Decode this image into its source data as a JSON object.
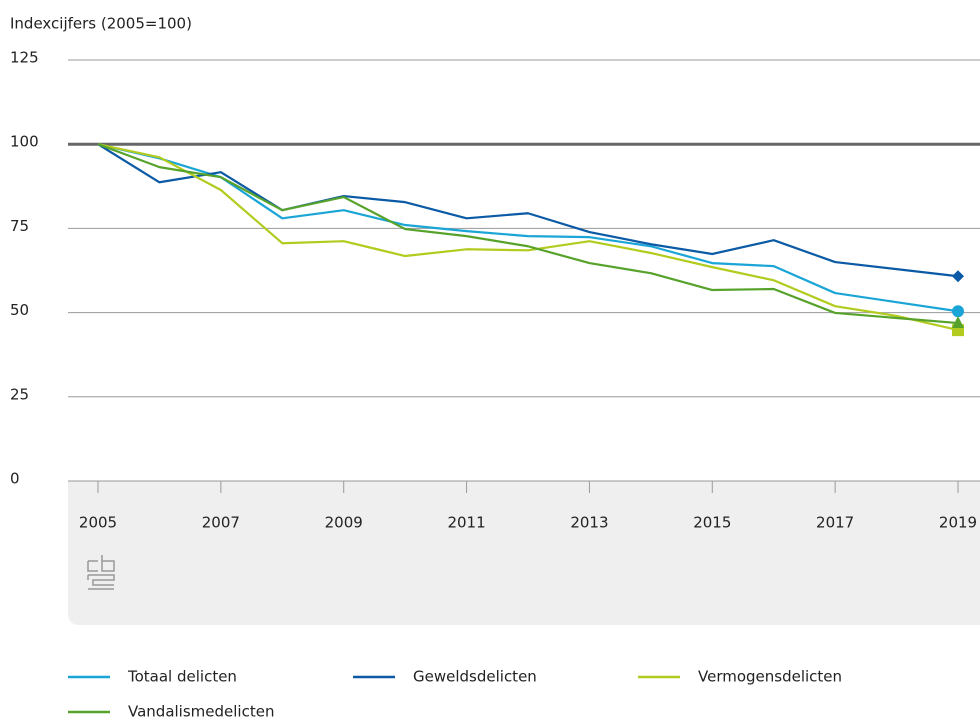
{
  "chart_data": {
    "type": "line",
    "y_label": "Indexcijfers (2005=100)",
    "x": [
      2005,
      2006,
      2007,
      2008,
      2009,
      2010,
      2011,
      2012,
      2013,
      2014,
      2015,
      2016,
      2017,
      2018,
      2019
    ],
    "xlim": [
      2005,
      2019
    ],
    "xticks": [
      2005,
      2007,
      2009,
      2011,
      2013,
      2015,
      2017,
      2019
    ],
    "ylim": [
      0,
      125
    ],
    "yticks": [
      0,
      25,
      50,
      75,
      100,
      125
    ],
    "baseline": 100,
    "grid": true,
    "legend": "bottom",
    "series": [
      {
        "name": "Totaal delicten",
        "color": "#1aa5d6",
        "marker": "circle",
        "values": [
          100,
          95.8,
          90.2,
          78,
          80.4,
          76,
          74.2,
          72.7,
          72.4,
          69.7,
          64.7,
          63.8,
          55.8,
          53.1,
          50.4
        ]
      },
      {
        "name": "Geweldsdelicten",
        "color": "#0a5aa5",
        "marker": "diamond",
        "values": [
          100,
          88.7,
          91.7,
          80.4,
          84.6,
          82.8,
          78,
          79.5,
          73.9,
          70.3,
          67.4,
          71.5,
          65,
          62.9,
          60.8
        ]
      },
      {
        "name": "Vermogensdelicten",
        "color": "#b2cb1e",
        "marker": "square",
        "values": [
          100,
          96.1,
          86.4,
          70.6,
          71.2,
          66.8,
          68.8,
          68.5,
          71.2,
          67.7,
          63.5,
          59.6,
          51.9,
          49,
          44.8
        ]
      },
      {
        "name": "Vandalismedelicten",
        "color": "#56a22a",
        "marker": "triangle",
        "values": [
          100,
          93.2,
          90.2,
          80.4,
          84.3,
          74.8,
          72.7,
          69.7,
          64.7,
          61.7,
          56.7,
          57,
          49.9,
          48.4,
          46.9
        ]
      }
    ]
  }
}
